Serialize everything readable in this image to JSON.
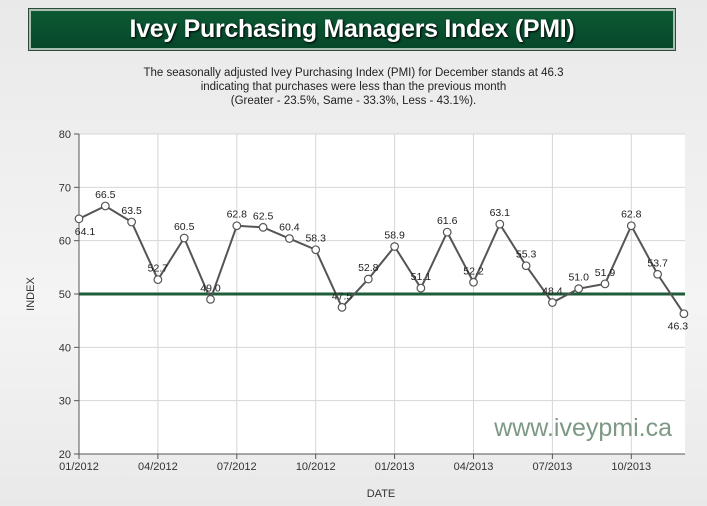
{
  "header": {
    "title": "Ivey Purchasing Managers Index (PMI)"
  },
  "description": {
    "line1": "The seasonally adjusted Ivey Purchasing Index (PMI) for December stands at 46.3",
    "line2": "indicating that purchases were less than the previous month",
    "line3": "(Greater - 23.5%, Same - 33.3%, Less - 43.1%)."
  },
  "watermark": "www.iveypmi.ca",
  "chart_data": {
    "type": "line",
    "xlabel": "DATE",
    "ylabel": "INDEX",
    "ylim": [
      20,
      80
    ],
    "yticks": [
      20,
      30,
      40,
      50,
      60,
      70,
      80
    ],
    "xticks": [
      "01/2012",
      "04/2012",
      "07/2012",
      "10/2012",
      "01/2013",
      "04/2013",
      "07/2013",
      "10/2013"
    ],
    "grid": true,
    "reference_line": {
      "value": 50,
      "color": "#1e5c3a"
    },
    "line_color": "#555555",
    "x": [
      "01/2012",
      "02/2012",
      "03/2012",
      "04/2012",
      "05/2012",
      "06/2012",
      "07/2012",
      "08/2012",
      "09/2012",
      "10/2012",
      "11/2012",
      "12/2012",
      "01/2013",
      "02/2013",
      "03/2013",
      "04/2013",
      "05/2013",
      "06/2013",
      "07/2013",
      "08/2013",
      "09/2013",
      "10/2013",
      "11/2013",
      "12/2013"
    ],
    "values": [
      64.1,
      66.5,
      63.5,
      52.7,
      60.5,
      49.0,
      62.8,
      62.5,
      60.4,
      58.3,
      47.5,
      52.8,
      58.9,
      51.1,
      61.6,
      52.2,
      63.1,
      55.3,
      48.4,
      51.0,
      51.9,
      62.8,
      53.7,
      46.3
    ]
  }
}
